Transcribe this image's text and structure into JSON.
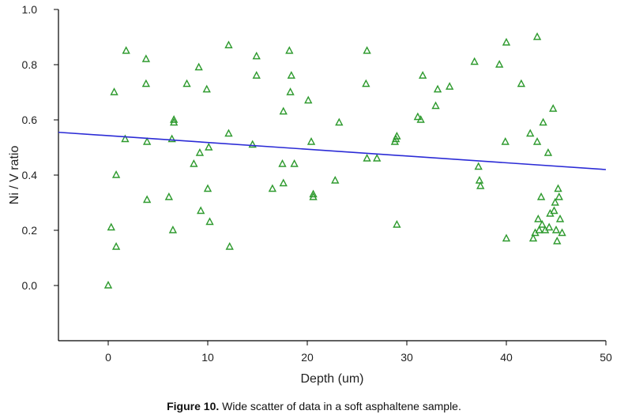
{
  "chart_data": {
    "type": "scatter",
    "xlabel": "Depth (um)",
    "ylabel": "Ni / V ratio",
    "xlim": [
      -5,
      50
    ],
    "ylim": [
      -0.2,
      1.0
    ],
    "x_ticks": [
      "0",
      "10",
      "20",
      "30",
      "40",
      "50"
    ],
    "y_ticks": [
      "0.0",
      "0.2",
      "0.4",
      "0.6",
      "0.8",
      "1.0"
    ],
    "grid": false,
    "marker": "triangle-open",
    "colors": {
      "points": "#2e9a2e",
      "trend": "#2b2bd6",
      "axis": "#000000"
    },
    "trend_line": {
      "x": [
        -5,
        50
      ],
      "y": [
        0.555,
        0.42
      ]
    },
    "points": [
      [
        0,
        0.0
      ],
      [
        0.3,
        0.21
      ],
      [
        0.6,
        0.7
      ],
      [
        0.8,
        0.4
      ],
      [
        0.8,
        0.14
      ],
      [
        1.8,
        0.85
      ],
      [
        1.7,
        0.53
      ],
      [
        3.8,
        0.82
      ],
      [
        3.8,
        0.73
      ],
      [
        3.9,
        0.52
      ],
      [
        3.9,
        0.31
      ],
      [
        6.1,
        0.32
      ],
      [
        6.4,
        0.53
      ],
      [
        6.6,
        0.6
      ],
      [
        6.6,
        0.59
      ],
      [
        6.5,
        0.2
      ],
      [
        7.9,
        0.73
      ],
      [
        8.6,
        0.44
      ],
      [
        9.1,
        0.79
      ],
      [
        9.2,
        0.48
      ],
      [
        9.3,
        0.27
      ],
      [
        9.9,
        0.71
      ],
      [
        10.1,
        0.5
      ],
      [
        10.0,
        0.35
      ],
      [
        10.2,
        0.23
      ],
      [
        12.1,
        0.87
      ],
      [
        12.1,
        0.55
      ],
      [
        12.2,
        0.14
      ],
      [
        14.5,
        0.51
      ],
      [
        14.9,
        0.83
      ],
      [
        14.9,
        0.76
      ],
      [
        16.5,
        0.35
      ],
      [
        17.5,
        0.44
      ],
      [
        17.6,
        0.37
      ],
      [
        17.6,
        0.63
      ],
      [
        18.2,
        0.85
      ],
      [
        18.4,
        0.76
      ],
      [
        18.3,
        0.7
      ],
      [
        18.7,
        0.44
      ],
      [
        20.1,
        0.67
      ],
      [
        20.4,
        0.52
      ],
      [
        20.6,
        0.33
      ],
      [
        20.6,
        0.32
      ],
      [
        22.8,
        0.38
      ],
      [
        23.2,
        0.59
      ],
      [
        25.9,
        0.73
      ],
      [
        26.0,
        0.85
      ],
      [
        26.0,
        0.46
      ],
      [
        27.0,
        0.46
      ],
      [
        28.8,
        0.52
      ],
      [
        28.9,
        0.53
      ],
      [
        29.0,
        0.54
      ],
      [
        29.0,
        0.22
      ],
      [
        31.1,
        0.61
      ],
      [
        31.4,
        0.6
      ],
      [
        31.6,
        0.76
      ],
      [
        32.9,
        0.65
      ],
      [
        33.1,
        0.71
      ],
      [
        34.3,
        0.72
      ],
      [
        36.8,
        0.81
      ],
      [
        37.2,
        0.43
      ],
      [
        37.3,
        0.38
      ],
      [
        37.4,
        0.36
      ],
      [
        39.3,
        0.8
      ],
      [
        39.9,
        0.52
      ],
      [
        40.0,
        0.88
      ],
      [
        40.0,
        0.17
      ],
      [
        41.5,
        0.73
      ],
      [
        42.4,
        0.55
      ],
      [
        42.7,
        0.17
      ],
      [
        42.9,
        0.19
      ],
      [
        43.1,
        0.52
      ],
      [
        43.1,
        0.9
      ],
      [
        43.2,
        0.24
      ],
      [
        43.3,
        0.2
      ],
      [
        43.5,
        0.32
      ],
      [
        43.6,
        0.22
      ],
      [
        43.7,
        0.59
      ],
      [
        43.9,
        0.2
      ],
      [
        44.2,
        0.48
      ],
      [
        44.3,
        0.21
      ],
      [
        44.4,
        0.26
      ],
      [
        44.7,
        0.64
      ],
      [
        44.8,
        0.27
      ],
      [
        44.9,
        0.3
      ],
      [
        45.0,
        0.2
      ],
      [
        45.1,
        0.16
      ],
      [
        45.2,
        0.35
      ],
      [
        45.3,
        0.32
      ],
      [
        45.4,
        0.24
      ],
      [
        45.6,
        0.19
      ]
    ]
  },
  "caption": {
    "label": "Figure 10.",
    "text": " Wide scatter of data in a soft asphaltene sample."
  }
}
